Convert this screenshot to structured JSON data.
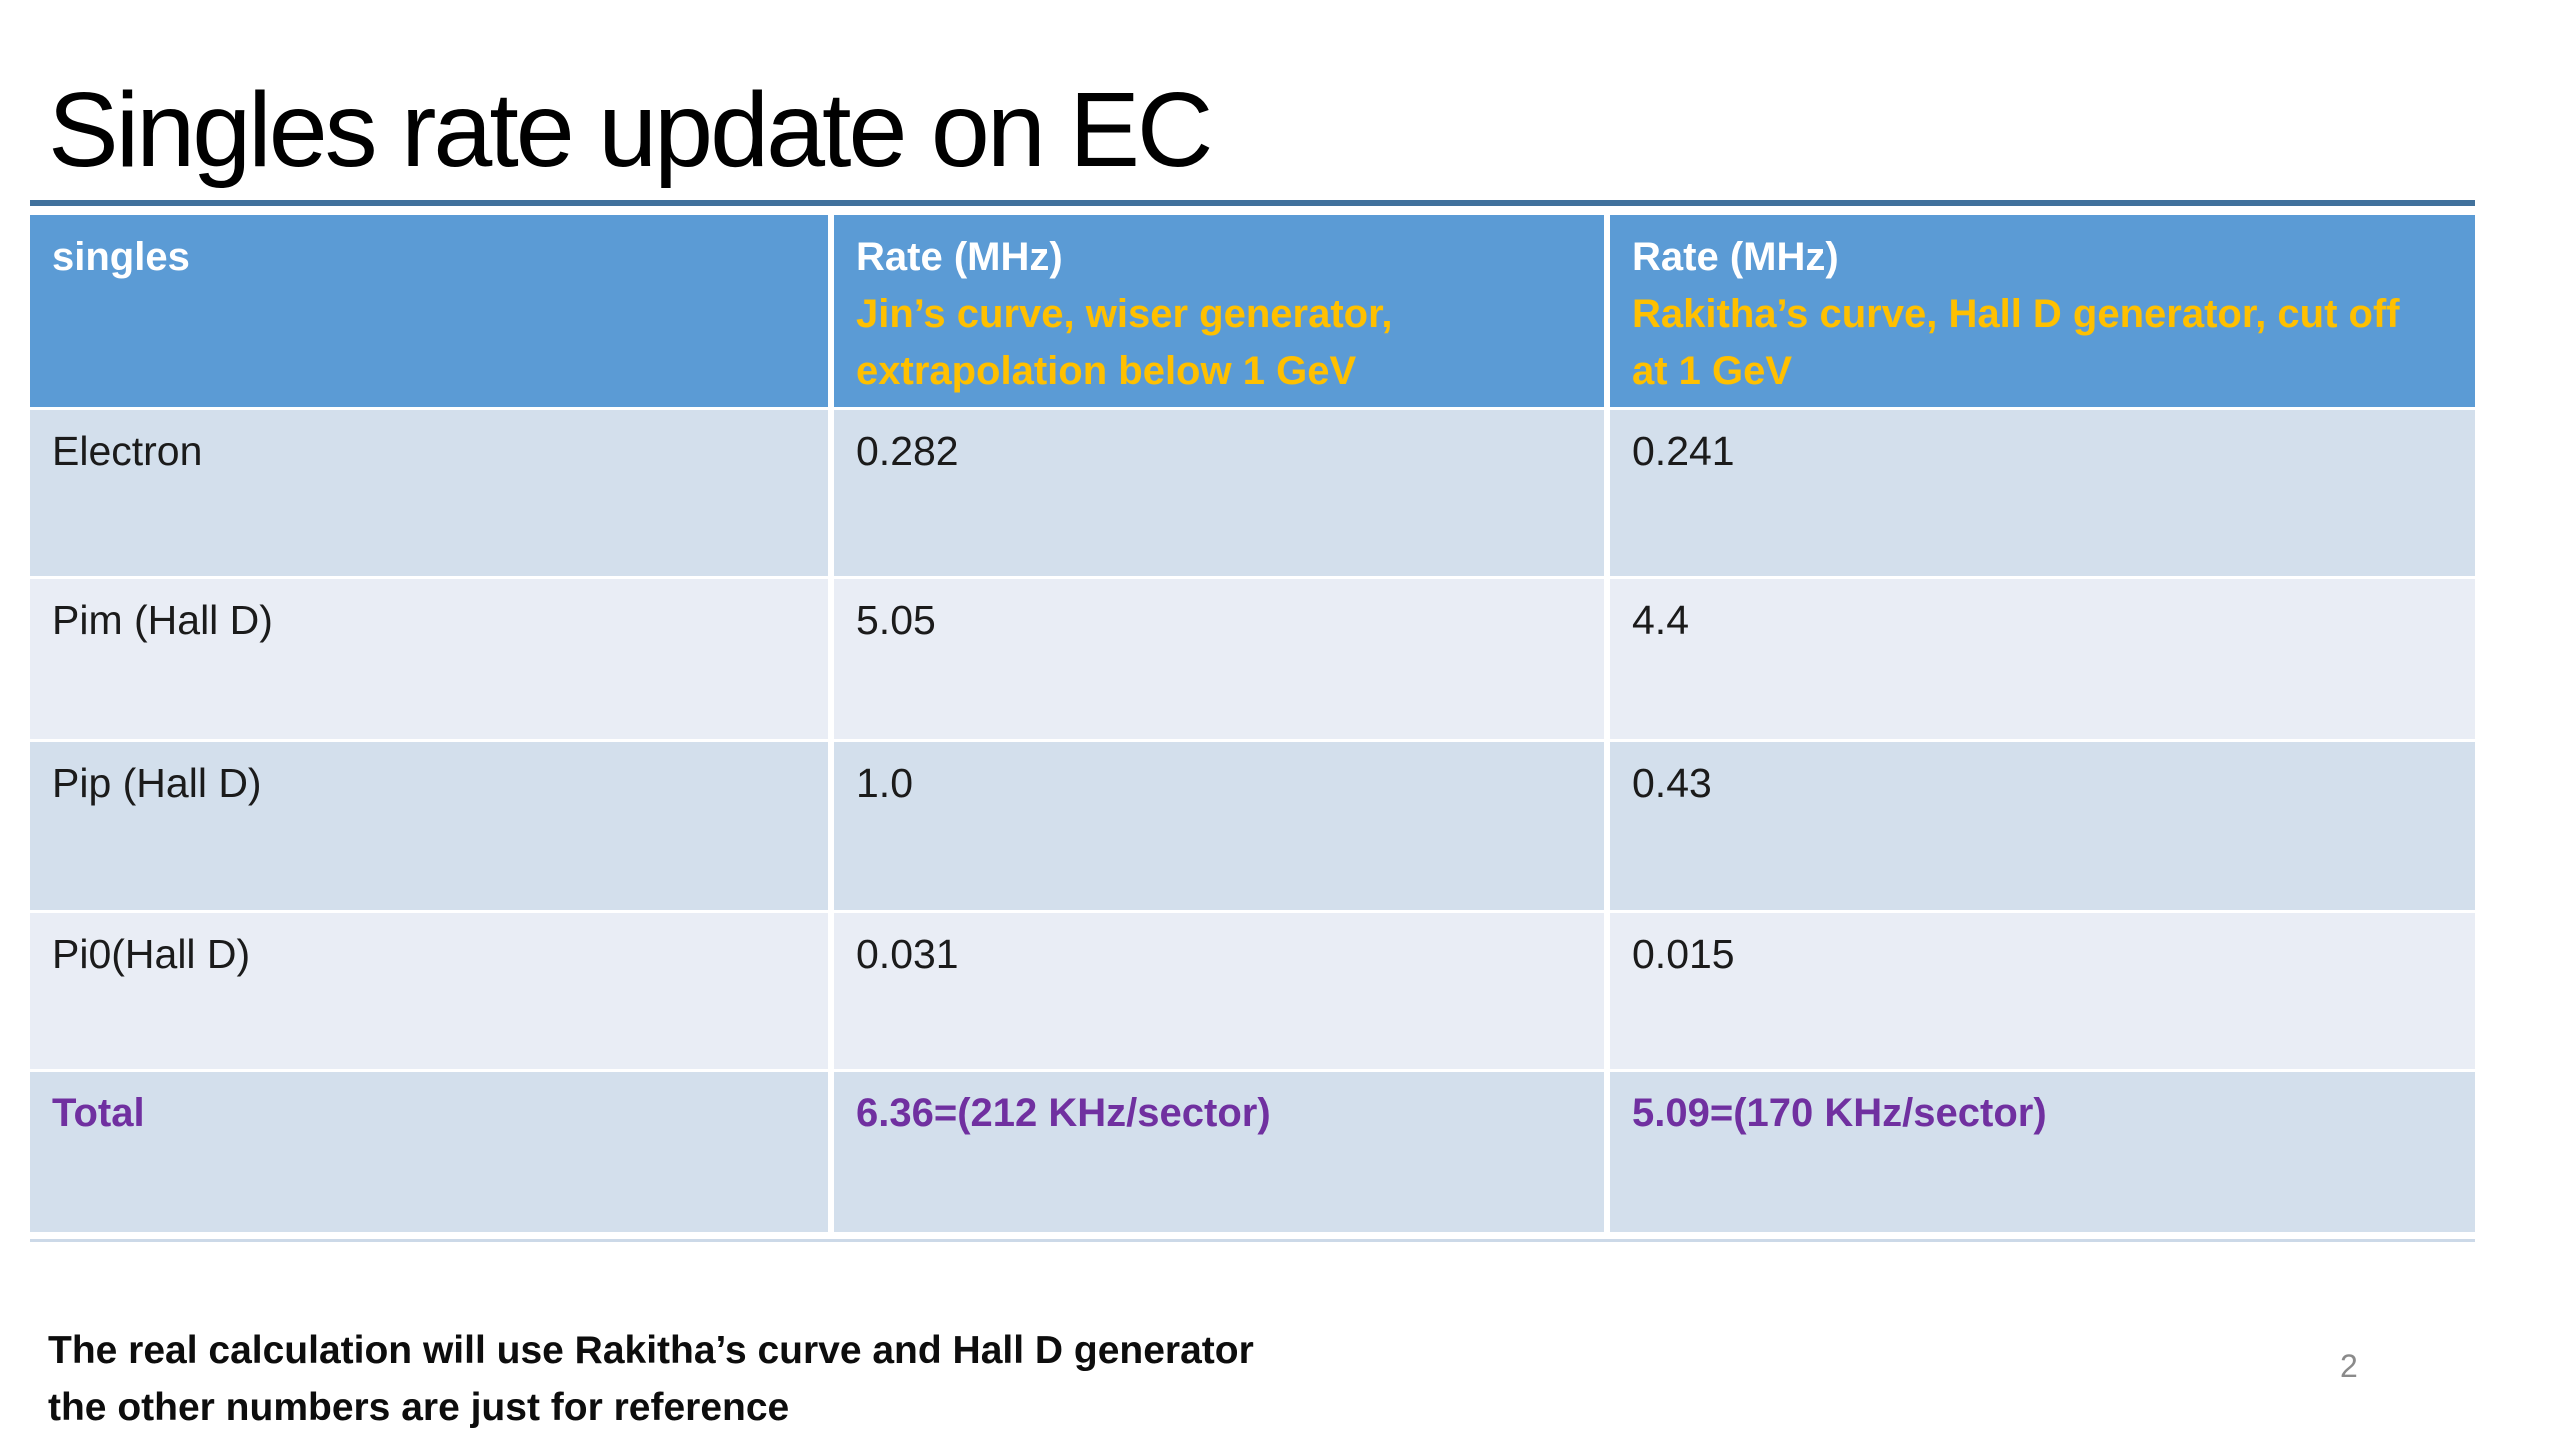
{
  "slide": {
    "title": "Singles rate update on EC",
    "page_number": "2",
    "footnote_lines": [
      "The real calculation will use Rakitha’s curve and Hall D generator",
      "the other numbers are just for reference"
    ]
  },
  "table": {
    "columns": [
      {
        "title": "singles"
      },
      {
        "title": "Rate (MHz)",
        "subtitle_lines": [
          "Jin’s curve, wiser generator,",
          "extrapolation below 1 GeV"
        ]
      },
      {
        "title": "Rate (MHz)",
        "subtitle_lines": [
          "Rakitha’s curve, Hall D generator, cut off",
          "at 1 GeV"
        ]
      }
    ],
    "rows": [
      {
        "particle": "Electron",
        "rate_jin": "0.282",
        "rate_rakitha": "0.241"
      },
      {
        "particle": "Pim (Hall D)",
        "rate_jin": "5.05",
        "rate_rakitha": "4.4"
      },
      {
        "particle": "Pip (Hall D)",
        "rate_jin": "1.0",
        "rate_rakitha": "0.43"
      },
      {
        "particle": "Pi0(Hall D)",
        "rate_jin": "0.031",
        "rate_rakitha": "0.015"
      }
    ],
    "total_row": {
      "label": "Total",
      "rate_jin": "6.36=(212 KHz/sector)",
      "rate_rakitha": "5.09=(170 KHz/sector)"
    }
  },
  "colors": {
    "header_fill": "#5B9BD5",
    "header_title_text": "#FFFFFF",
    "header_subtitle_text": "#FFC000",
    "row_fill_dark": "#D3DFEC",
    "row_fill_light": "#E9EDF5",
    "total_text": "#7030A0",
    "table_top_border": "#41719C",
    "page_number_text": "#8A8A8A"
  }
}
